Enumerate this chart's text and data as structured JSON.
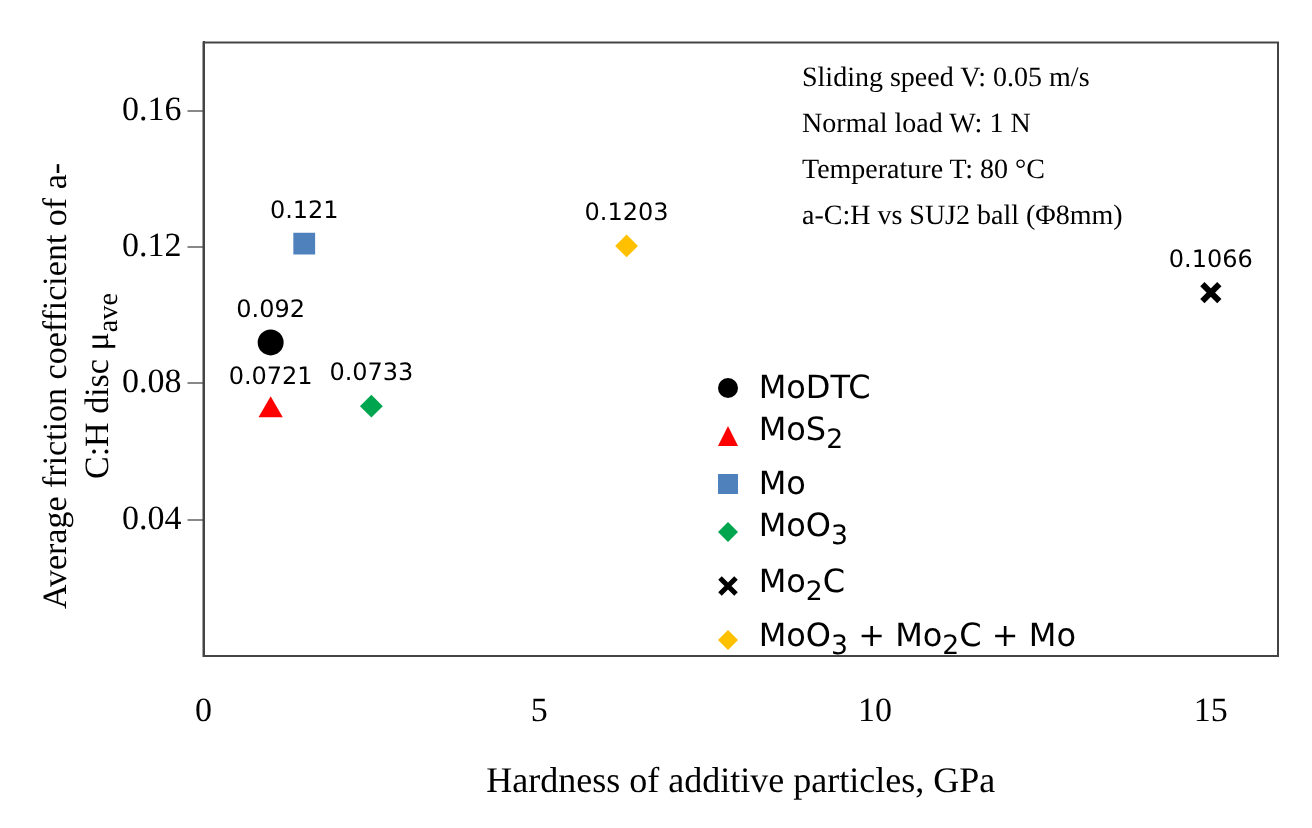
{
  "chart_data": {
    "type": "scatter",
    "xlabel": "Hardness of additive particles, GPa",
    "ylabel": "Average friction coefficient of a-C:H disc μ$_{ave}$",
    "xlim": [
      0,
      16
    ],
    "xticks": [
      0,
      5,
      10,
      15
    ],
    "ylim": [
      0,
      0.18
    ],
    "yticks": [
      0.04,
      0.08,
      0.12,
      0.16
    ],
    "grid": false,
    "legend": "bottom right",
    "data_labels": true,
    "annotations": [
      "Sliding speed V: 0.05 m/s",
      "Normal load W: 1 N",
      "Temperature T: 80 °C",
      "a-C:H vs SUJ2 ball (Φ8mm)"
    ],
    "series": [
      {
        "name": "MoDTC",
        "color": "#000000",
        "marker": "circle",
        "x": [
          1
        ],
        "values": [
          0.092
        ]
      },
      {
        "name": "MoS$_{2}$",
        "color": "#ff0000",
        "marker": "triangle",
        "x": [
          1
        ],
        "values": [
          0.0721
        ]
      },
      {
        "name": "Mo",
        "color": "#4f81bd",
        "marker": "square",
        "x": [
          1.5
        ],
        "values": [
          0.121
        ]
      },
      {
        "name": "MoO$_{3}$",
        "color": "#00a550",
        "marker": "diamond",
        "x": [
          2.5
        ],
        "values": [
          0.0733
        ]
      },
      {
        "name": "Mo$_{2}$C",
        "color": "#000000",
        "marker": "cross",
        "x": [
          15
        ],
        "values": [
          0.1066
        ]
      },
      {
        "name": "MoO$_{3}$ + Mo$_{2}$C + Mo",
        "color": "#ffc000",
        "marker": "diamond",
        "x": [
          6.3
        ],
        "values": [
          0.1203
        ]
      }
    ]
  }
}
